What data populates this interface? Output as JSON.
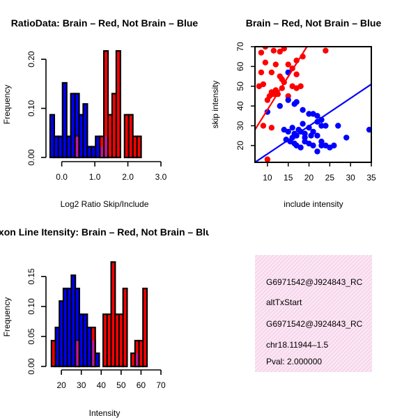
{
  "colors": {
    "red": "#ff0000",
    "blue": "#0000ff",
    "overlap": "#a020a0",
    "info_bg": "#f8d8ee",
    "pval": "#8b0000"
  },
  "chart_data": [
    {
      "id": "ratio",
      "type": "histogram",
      "title": "RatioData: Brain – Red, Not Brain – Blue",
      "xlabel": "Log2 Ratio Skip/Include",
      "ylabel": "Frequency",
      "xlim": [
        -0.35,
        3.0
      ],
      "ylim": [
        0,
        0.22
      ],
      "xticks": [
        0.0,
        1.0,
        2.0,
        3.0
      ],
      "xtick_labels": [
        "0.0",
        "1.0",
        "2.0",
        "3.0"
      ],
      "yticks": [
        0.0,
        0.1,
        0.2
      ],
      "ytick_labels": [
        "0.00",
        "0.10",
        "0.20"
      ],
      "bin_width": 0.125,
      "blue": {
        "start": -0.35,
        "values": [
          0.087,
          0.043,
          0.043,
          0.152,
          0.043,
          0.13,
          0.13,
          0.087,
          0.109,
          0.022,
          0.022,
          0.043,
          0.022,
          0.043
        ]
      },
      "red": {
        "start": 0.4,
        "values": [
          0.043,
          0,
          0,
          0,
          0,
          0,
          0.043,
          0.217,
          0.087,
          0.13,
          0.217,
          0,
          0.087,
          0.087,
          0.043,
          0.043
        ]
      }
    },
    {
      "id": "scatter",
      "type": "scatter",
      "title": "Brain – Red, Not Brain – Blue",
      "xlabel": "include intensity",
      "ylabel": "skip intensity",
      "xlim": [
        7,
        35
      ],
      "ylim": [
        11.5,
        70
      ],
      "xticks": [
        10,
        15,
        20,
        25,
        30,
        35
      ],
      "yticks": [
        20,
        30,
        40,
        50,
        60,
        70
      ],
      "red_points": [
        [
          8.5,
          67
        ],
        [
          9.5,
          70
        ],
        [
          11.5,
          68
        ],
        [
          13,
          67.5
        ],
        [
          14,
          69
        ],
        [
          17,
          63
        ],
        [
          18.5,
          65
        ],
        [
          24,
          68
        ],
        [
          8.5,
          57
        ],
        [
          9.5,
          62
        ],
        [
          11,
          57
        ],
        [
          12,
          61
        ],
        [
          13,
          55
        ],
        [
          13.5,
          53.5
        ],
        [
          15,
          61
        ],
        [
          16,
          59
        ],
        [
          17,
          56
        ],
        [
          8,
          50
        ],
        [
          9,
          51
        ],
        [
          10,
          43
        ],
        [
          10.5,
          45
        ],
        [
          11,
          47
        ],
        [
          11.5,
          46
        ],
        [
          12,
          48
        ],
        [
          12.5,
          46
        ],
        [
          13.5,
          49
        ],
        [
          14,
          52
        ],
        [
          15,
          45
        ],
        [
          16,
          50
        ],
        [
          17,
          49
        ],
        [
          18,
          50
        ],
        [
          11,
          29
        ],
        [
          9,
          30
        ],
        [
          10,
          13
        ]
      ],
      "red_line": [
        [
          7,
          28
        ],
        [
          19.5,
          70
        ]
      ],
      "blue_points": [
        [
          10,
          37
        ],
        [
          13,
          40
        ],
        [
          15,
          43
        ],
        [
          15,
          57
        ],
        [
          16.5,
          41
        ],
        [
          17,
          42
        ],
        [
          18.5,
          38
        ],
        [
          20,
          36
        ],
        [
          21,
          36
        ],
        [
          22,
          35
        ],
        [
          23,
          33
        ],
        [
          14,
          28
        ],
        [
          15,
          27
        ],
        [
          16,
          29
        ],
        [
          16.5,
          26
        ],
        [
          17,
          25
        ],
        [
          17.5,
          28
        ],
        [
          18,
          27
        ],
        [
          18.5,
          31
        ],
        [
          19,
          26
        ],
        [
          20,
          29
        ],
        [
          20.5,
          25
        ],
        [
          21,
          27
        ],
        [
          22,
          32
        ],
        [
          23,
          30
        ],
        [
          24,
          30
        ],
        [
          27,
          30
        ],
        [
          14.5,
          23
        ],
        [
          15.5,
          22
        ],
        [
          16,
          24
        ],
        [
          16.5,
          21
        ],
        [
          17,
          20
        ],
        [
          18,
          19
        ],
        [
          19,
          22
        ],
        [
          19,
          24
        ],
        [
          20,
          21
        ],
        [
          21,
          20
        ],
        [
          22,
          25
        ],
        [
          22,
          17
        ],
        [
          23,
          22
        ],
        [
          23,
          20
        ],
        [
          24,
          20
        ],
        [
          25,
          19
        ],
        [
          26,
          20
        ],
        [
          29,
          24
        ],
        [
          34.5,
          28
        ]
      ],
      "blue_line": [
        [
          7,
          11.5
        ],
        [
          35,
          51
        ]
      ]
    },
    {
      "id": "intensity",
      "type": "histogram",
      "title": "Exon Line Itensity: Brain – Red, Not Brain – Blue",
      "xlabel": "Intensity",
      "ylabel": "Frequency",
      "xlim": [
        14,
        70
      ],
      "ylim": [
        0,
        0.18
      ],
      "xticks": [
        20,
        30,
        40,
        50,
        60,
        70
      ],
      "yticks": [
        0.0,
        0.05,
        0.1,
        0.15
      ],
      "ytick_labels": [
        "0.00",
        "0.05",
        "0.10",
        "0.15"
      ],
      "bin_width": 2,
      "blue": {
        "start": 17,
        "values": [
          0.065,
          0.109,
          0.13,
          0.13,
          0.152,
          0.13,
          0.087,
          0.087,
          0.065,
          0.043,
          0.022,
          0,
          0,
          0,
          0,
          0,
          0,
          0,
          0,
          0,
          0.022,
          0,
          0,
          0,
          0,
          0
        ]
      },
      "red": {
        "start": 15,
        "values": [
          0.043,
          0,
          0,
          0,
          0,
          0,
          0.043,
          0,
          0,
          0,
          0.065,
          0,
          0,
          0.087,
          0.087,
          0.174,
          0.087,
          0.087,
          0.13,
          0,
          0.022,
          0.043,
          0.043,
          0.13
        ]
      }
    }
  ],
  "info": {
    "line1": "G6971542@J924843_RC",
    "line2": "altTxStart",
    "line3": "G6971542@J924843_RC",
    "line4": "chr18.11944–1.5",
    "pval": "Pval: 2.000000"
  }
}
